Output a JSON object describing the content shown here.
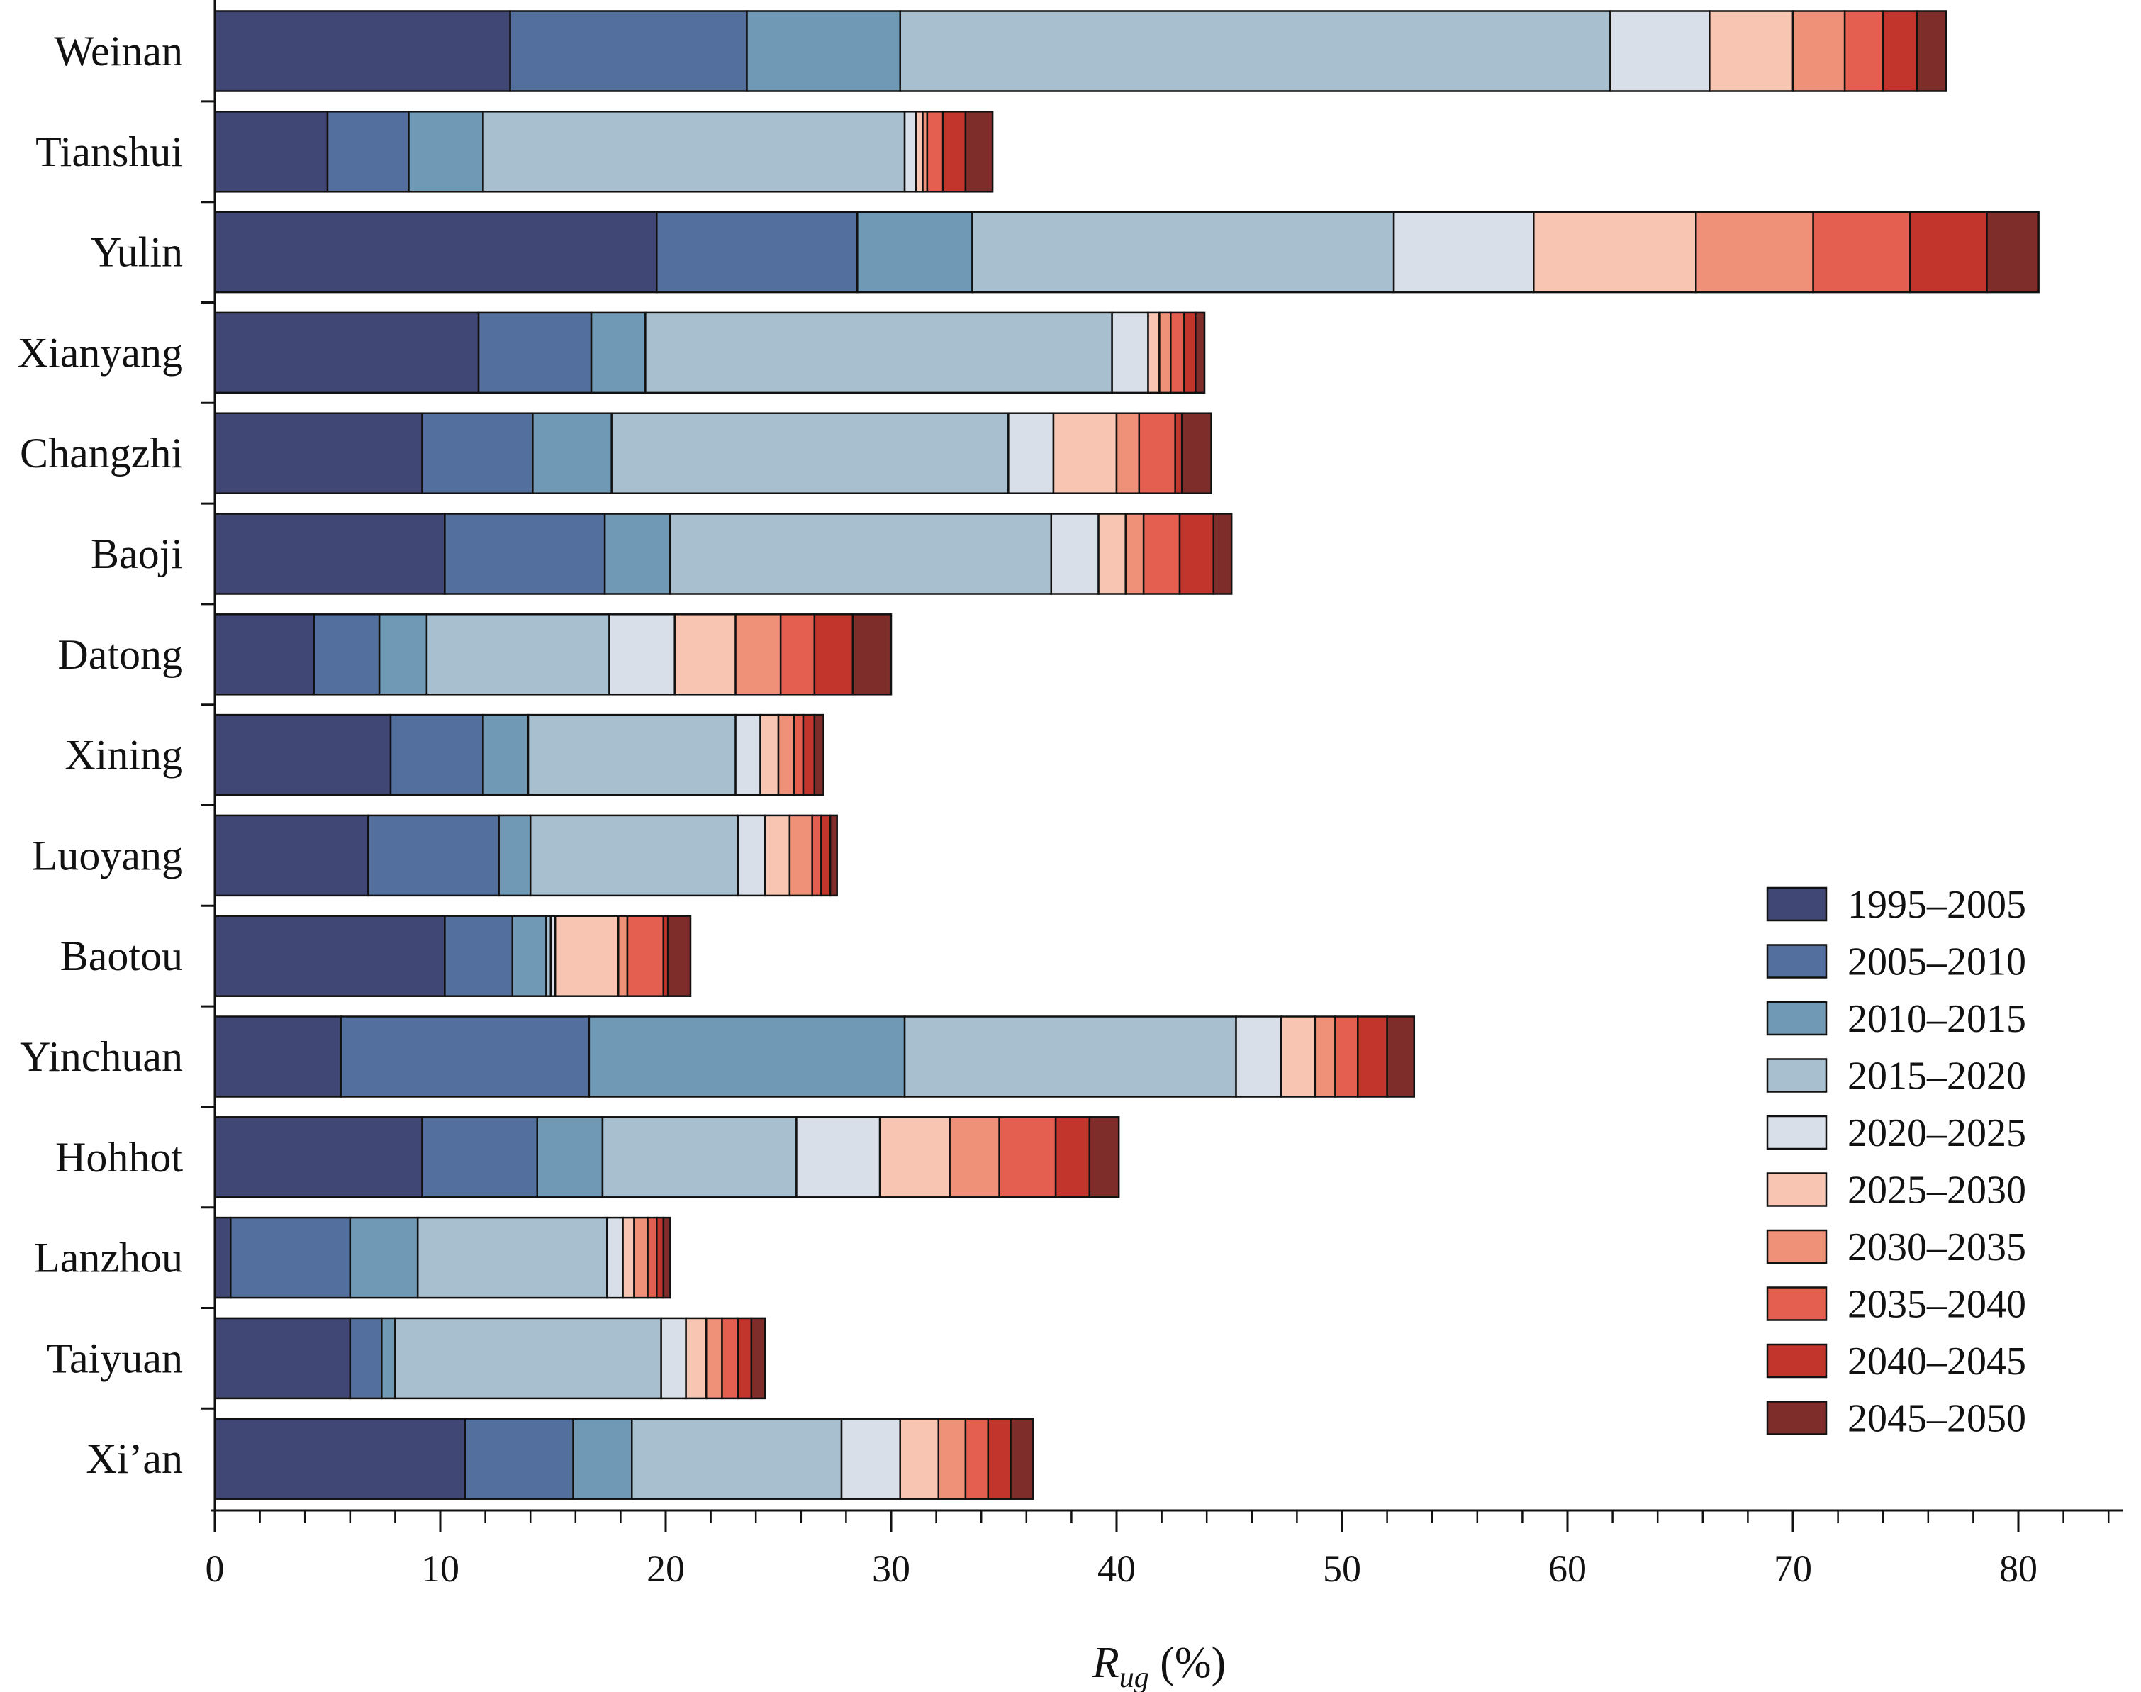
{
  "chart_data": {
    "type": "bar",
    "orientation": "horizontal",
    "stacked": true,
    "categories": [
      "Weinan",
      "Tianshui",
      "Yulin",
      "Xianyang",
      "Changzhi",
      "Baoji",
      "Datong",
      "Xining",
      "Luoyang",
      "Baotou",
      "Yinchuan",
      "Hohhot",
      "Lanzhou",
      "Taiyuan",
      "Xi’an"
    ],
    "series": [
      {
        "name": "1995–2005",
        "color": "#414775",
        "values": [
          13.1,
          5.0,
          19.6,
          11.7,
          9.2,
          10.2,
          4.4,
          7.8,
          6.8,
          10.2,
          5.6,
          9.2,
          0.7,
          6.0,
          11.1
        ]
      },
      {
        "name": "2005–2010",
        "color": "#536f9d",
        "values": [
          10.5,
          3.6,
          8.9,
          5.0,
          4.9,
          7.1,
          2.9,
          4.1,
          5.8,
          3.0,
          11.0,
          5.1,
          5.3,
          1.4,
          4.8
        ]
      },
      {
        "name": "2010–2015",
        "color": "#7099b6",
        "values": [
          6.8,
          3.3,
          5.1,
          2.4,
          3.5,
          2.9,
          2.1,
          2.0,
          1.4,
          1.5,
          14.0,
          2.9,
          3.0,
          0.6,
          2.6
        ]
      },
      {
        "name": "2015–2020",
        "color": "#a8bfcf",
        "values": [
          31.5,
          18.7,
          18.7,
          20.7,
          17.6,
          16.9,
          8.1,
          9.2,
          9.2,
          0.2,
          14.7,
          8.6,
          8.4,
          11.8,
          9.3
        ]
      },
      {
        "name": "2020–2025",
        "color": "#d8dfe9",
        "values": [
          4.4,
          0.5,
          6.2,
          1.6,
          2.0,
          2.1,
          2.9,
          1.1,
          1.2,
          0.2,
          2.0,
          3.7,
          0.7,
          1.1,
          2.6
        ]
      },
      {
        "name": "2025–2030",
        "color": "#f7c5b2",
        "values": [
          3.7,
          0.3,
          7.2,
          0.5,
          2.8,
          1.2,
          2.7,
          0.8,
          1.1,
          2.8,
          1.5,
          3.1,
          0.5,
          0.9,
          1.7
        ]
      },
      {
        "name": "2030–2035",
        "color": "#ef9178",
        "values": [
          2.3,
          0.2,
          5.2,
          0.5,
          1.0,
          0.8,
          2.0,
          0.7,
          1.0,
          0.4,
          0.9,
          2.2,
          0.6,
          0.7,
          1.2
        ]
      },
      {
        "name": "2035–2040",
        "color": "#e45f4f",
        "values": [
          1.7,
          0.7,
          4.3,
          0.6,
          1.6,
          1.6,
          1.5,
          0.4,
          0.4,
          1.6,
          1.0,
          2.5,
          0.4,
          0.7,
          1.0
        ]
      },
      {
        "name": "2040–2045",
        "color": "#c1352d",
        "values": [
          1.5,
          1.0,
          3.4,
          0.5,
          0.3,
          1.5,
          1.7,
          0.5,
          0.4,
          0.2,
          1.3,
          1.5,
          0.3,
          0.6,
          1.0
        ]
      },
      {
        "name": "2045–2050",
        "color": "#7e2d2a",
        "values": [
          1.3,
          1.2,
          2.3,
          0.4,
          1.3,
          0.8,
          1.7,
          0.4,
          0.3,
          1.0,
          1.2,
          1.3,
          0.3,
          0.6,
          1.0
        ]
      }
    ],
    "xlabel": "R_ug (%)",
    "xlabel_base": "R",
    "xlabel_sub": "ug",
    "xlabel_suffix": " (%)",
    "ylabel": "",
    "xlim": [
      0,
      85
    ],
    "xticks": [
      0,
      10,
      20,
      30,
      40,
      50,
      60,
      70,
      80
    ],
    "minor_tick_step": 2,
    "grid": false,
    "legend_position": "bottom-right",
    "bar_outline_color": "#111111"
  }
}
